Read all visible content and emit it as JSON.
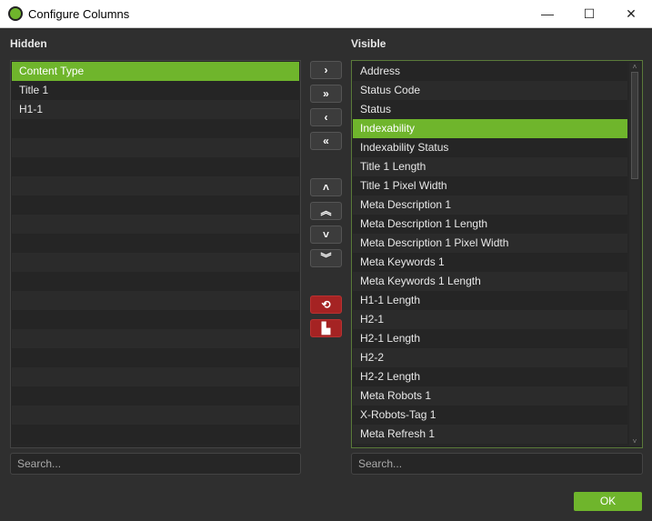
{
  "window": {
    "title": "Configure Columns",
    "minimize": "—",
    "maximize": "☐",
    "close": "✕"
  },
  "hidden": {
    "label": "Hidden",
    "items": [
      "Content Type",
      "Title 1",
      "H1-1"
    ],
    "selected": 0,
    "search_placeholder": "Search..."
  },
  "visible": {
    "label": "Visible",
    "items": [
      "Address",
      "Status Code",
      "Status",
      "Indexability",
      "Indexability Status",
      "Title 1 Length",
      "Title 1 Pixel Width",
      "Meta Description 1",
      "Meta Description 1 Length",
      "Meta Description 1 Pixel Width",
      "Meta Keywords 1",
      "Meta Keywords 1 Length",
      "H1-1 Length",
      "H2-1",
      "H2-1 Length",
      "H2-2",
      "H2-2 Length",
      "Meta Robots 1",
      "X-Robots-Tag 1",
      "Meta Refresh 1"
    ],
    "selected": 3,
    "search_placeholder": "Search..."
  },
  "buttons": {
    "move_right": "›",
    "move_all_right": "»",
    "move_left": "‹",
    "move_all_left": "«",
    "up": "˄",
    "top": "︽",
    "down": "˅",
    "bottom": "︾",
    "reset": "⟲",
    "factory": "▙",
    "ok": "OK"
  },
  "colors": {
    "accent": "#6fb52c",
    "danger": "#a52323"
  }
}
